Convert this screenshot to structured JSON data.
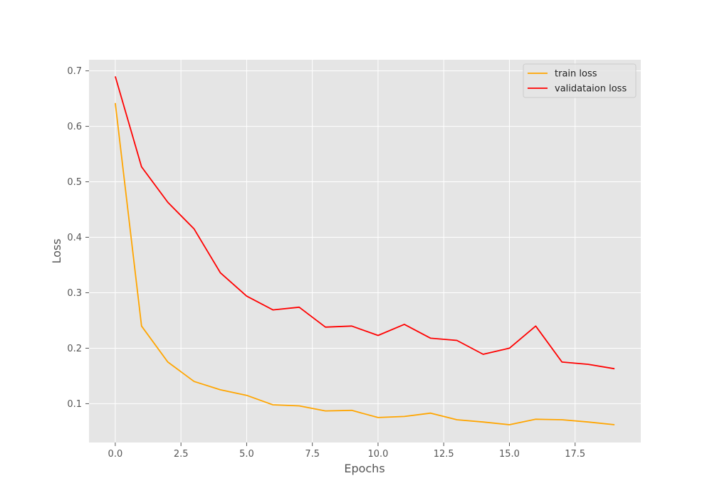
{
  "chart_data": {
    "type": "line",
    "title": "",
    "xlabel": "Epochs",
    "ylabel": "Loss",
    "xlim": [
      -1,
      20
    ],
    "ylim": [
      0.03,
      0.72
    ],
    "xticks": [
      0.0,
      2.5,
      5.0,
      7.5,
      10.0,
      12.5,
      15.0,
      17.5
    ],
    "xtick_labels": [
      "0.0",
      "2.5",
      "5.0",
      "7.5",
      "10.0",
      "12.5",
      "15.0",
      "17.5"
    ],
    "yticks": [
      0.1,
      0.2,
      0.3,
      0.4,
      0.5,
      0.6,
      0.7
    ],
    "ytick_labels": [
      "0.1",
      "0.2",
      "0.3",
      "0.4",
      "0.5",
      "0.6",
      "0.7"
    ],
    "grid": true,
    "legend_position": "top-right",
    "background_color": "#e5e5e5",
    "grid_color": "#ffffff",
    "x": [
      0,
      1,
      2,
      3,
      4,
      5,
      6,
      7,
      8,
      9,
      10,
      11,
      12,
      13,
      14,
      15,
      16,
      17,
      18,
      19
    ],
    "series": [
      {
        "name": "train loss",
        "color": "#ffa500",
        "values": [
          0.642,
          0.24,
          0.175,
          0.14,
          0.125,
          0.115,
          0.098,
          0.096,
          0.087,
          0.088,
          0.075,
          0.077,
          0.083,
          0.071,
          0.067,
          0.062,
          0.072,
          0.071,
          0.067,
          0.062
        ]
      },
      {
        "name": "validataion loss",
        "color": "#ff0000",
        "values": [
          0.69,
          0.527,
          0.463,
          0.415,
          0.336,
          0.294,
          0.269,
          0.274,
          0.238,
          0.24,
          0.223,
          0.243,
          0.218,
          0.214,
          0.189,
          0.2,
          0.24,
          0.175,
          0.171,
          0.163
        ]
      }
    ]
  }
}
